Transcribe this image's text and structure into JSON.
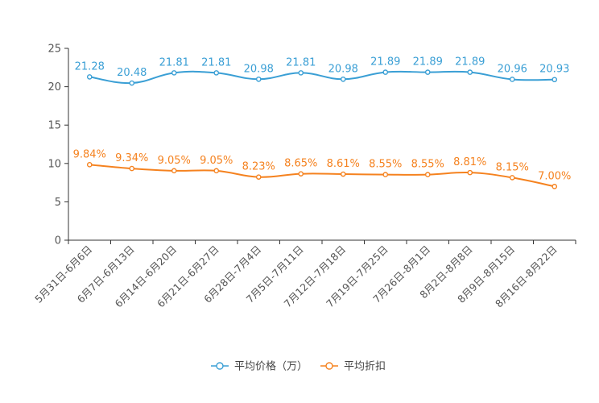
{
  "chart_data": {
    "type": "line",
    "categories": [
      "5月31日-6月6日",
      "6月7日-6月13日",
      "6月14日-6月20日",
      "6月21日-6月27日",
      "6月28日-7月4日",
      "7月5日-7月11日",
      "7月12日-7月18日",
      "7月19日-7月25日",
      "7月26日-8月1日",
      "8月2日-8月8日",
      "8月9日-8月15日",
      "8月16日-8月22日"
    ],
    "series": [
      {
        "name": "平均价格（万）",
        "color": "#3a9fd5",
        "values": [
          21.28,
          20.48,
          21.81,
          21.81,
          20.98,
          21.81,
          20.98,
          21.89,
          21.89,
          21.89,
          20.96,
          20.93
        ],
        "labels": [
          "21.28",
          "20.48",
          "21.81",
          "21.81",
          "20.98",
          "21.81",
          "20.98",
          "21.89",
          "21.89",
          "21.89",
          "20.96",
          "20.93"
        ]
      },
      {
        "name": "平均折扣",
        "color": "#f5821f",
        "values": [
          9.84,
          9.34,
          9.05,
          9.05,
          8.23,
          8.65,
          8.61,
          8.55,
          8.55,
          8.81,
          8.15,
          7.0
        ],
        "labels": [
          "9.84%",
          "9.34%",
          "9.05%",
          "9.05%",
          "8.23%",
          "8.65%",
          "8.61%",
          "8.55%",
          "8.55%",
          "8.81%",
          "8.15%",
          "7.00%"
        ]
      }
    ],
    "ylim": [
      0,
      25
    ],
    "yticks": [
      0,
      5,
      10,
      15,
      20,
      25
    ],
    "ytick_labels": [
      "0",
      "5",
      "10",
      "15",
      "20",
      "25"
    ],
    "legend_position": "bottom-center",
    "grid": false,
    "title": "",
    "xlabel": "",
    "ylabel": ""
  }
}
